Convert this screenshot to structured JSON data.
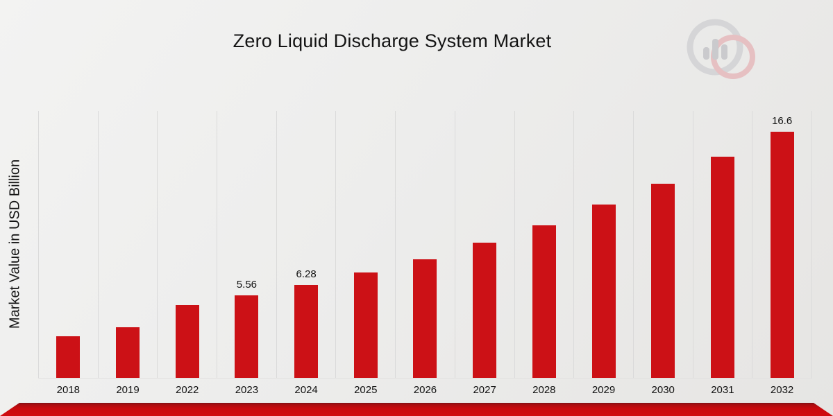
{
  "header": {
    "title": "Zero Liquid Discharge System Market"
  },
  "axes": {
    "ylabel": "Market Value in USD Billion"
  },
  "colors": {
    "bar": "#cc1116",
    "bottom_band": "#d10b0f",
    "gridline": "#dadada"
  },
  "chart_data": {
    "type": "bar",
    "title": "Zero Liquid Discharge System Market",
    "xlabel": "",
    "ylabel": "Market Value in USD Billion",
    "categories": [
      "2018",
      "2019",
      "2022",
      "2023",
      "2024",
      "2025",
      "2026",
      "2027",
      "2028",
      "2029",
      "2030",
      "2031",
      "2032"
    ],
    "values": [
      2.8,
      3.4,
      4.9,
      5.56,
      6.28,
      7.1,
      8.0,
      9.1,
      10.3,
      11.7,
      13.1,
      14.9,
      16.6
    ],
    "data_labels": [
      "",
      "",
      "",
      "5.56",
      "6.28",
      "",
      "",
      "",
      "",
      "",
      "",
      "",
      "16.6"
    ],
    "ylim": [
      0,
      18
    ],
    "grid": "vertical",
    "legend": "none",
    "bar_color": "#cc1116"
  }
}
